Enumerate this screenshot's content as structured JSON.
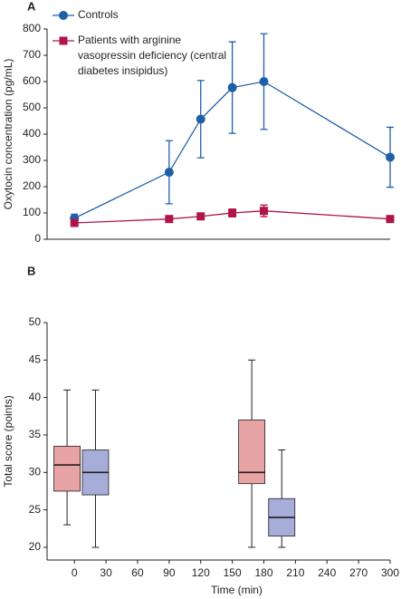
{
  "chart_data": [
    {
      "type": "line",
      "panel_label": "A",
      "y_label": "Oxytocin concentration (pg/mL)",
      "x": [
        0,
        90,
        120,
        150,
        180,
        300
      ],
      "xlim": [
        -26,
        300
      ],
      "ylim": [
        0,
        800
      ],
      "yticks": [
        0,
        100,
        200,
        300,
        400,
        500,
        600,
        700,
        800
      ],
      "series": [
        {
          "name": "Controls",
          "color": "#1f5fa8",
          "marker": "circle",
          "values": [
            80,
            255,
            457,
            577,
            600,
            312
          ],
          "errors": [
            15,
            120,
            147,
            174,
            182,
            114
          ]
        },
        {
          "name": "Patients with arginine vasopressin deficiency (central diabetes insipidus)",
          "color": "#b0144a",
          "marker": "square",
          "values": [
            62,
            77,
            87,
            100,
            108,
            77
          ],
          "errors": [
            5,
            10,
            12,
            15,
            22,
            8
          ]
        }
      ]
    },
    {
      "type": "box",
      "panel_label": "B",
      "x_label": "Time (min)",
      "y_label": "Total score (points)",
      "xlim": [
        -26,
        300
      ],
      "xticks": [
        0,
        30,
        60,
        90,
        120,
        150,
        180,
        210,
        240,
        270,
        300
      ],
      "ylim": [
        18.3,
        50
      ],
      "yticks": [
        20,
        25,
        30,
        35,
        40,
        45,
        50
      ],
      "boxes": [
        {
          "x": -7,
          "color": "#e8a4a4",
          "whisker_low": 23,
          "q1": 27.5,
          "median": 31,
          "q3": 33.5,
          "whisker_high": 41
        },
        {
          "x": 20,
          "color": "#a6add9",
          "whisker_low": 20,
          "q1": 27,
          "median": 30,
          "q3": 33,
          "whisker_high": 41
        },
        {
          "x": 168.5,
          "color": "#e8a4a4",
          "whisker_low": 20,
          "q1": 28.5,
          "median": 30,
          "q3": 37,
          "whisker_high": 45
        },
        {
          "x": 197,
          "color": "#a6add9",
          "whisker_low": 20,
          "q1": 21.5,
          "median": 24,
          "q3": 26.5,
          "whisker_high": 33
        }
      ]
    }
  ]
}
